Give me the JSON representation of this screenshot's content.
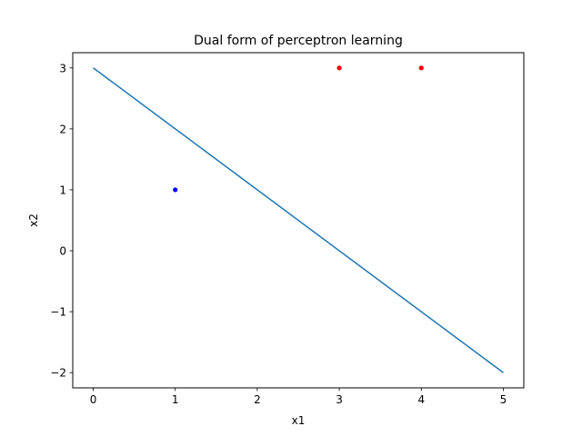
{
  "chart_data": {
    "type": "scatter",
    "title": "Dual form of perceptron learning",
    "xlabel": "x1",
    "ylabel": "x2",
    "xlim": [
      -0.25,
      5.25
    ],
    "ylim": [
      -2.25,
      3.25
    ],
    "grid": false,
    "x_ticks": [
      0,
      1,
      2,
      3,
      4,
      5
    ],
    "y_ticks": [
      -2,
      -1,
      0,
      1,
      2,
      3
    ],
    "x_tick_labels": [
      "0",
      "1",
      "2",
      "3",
      "4",
      "5"
    ],
    "y_tick_labels": [
      "−2",
      "−1",
      "0",
      "1",
      "2",
      "3"
    ],
    "series": [
      {
        "type": "scatter",
        "color": "#ff0000",
        "points": [
          [
            3,
            3
          ],
          [
            4,
            3
          ]
        ]
      },
      {
        "type": "scatter",
        "color": "#0000ff",
        "points": [
          [
            1,
            1
          ]
        ]
      },
      {
        "type": "line",
        "color": "#1f77b4",
        "points": [
          [
            0,
            3
          ],
          [
            5,
            -2
          ]
        ]
      }
    ]
  }
}
